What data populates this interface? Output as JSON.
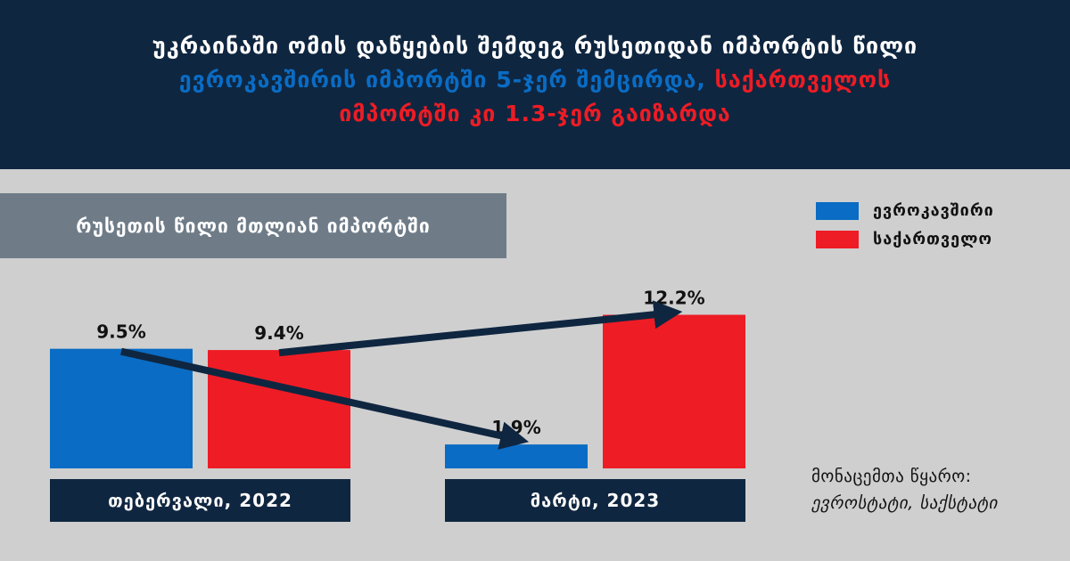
{
  "header": {
    "line1": "უკრაინაში ომის დაწყების შემდეგ რუსეთიდან იმპორტის წილი",
    "line2_blue": "ევროკავშირის იმპორტში 5-ჯერ შემცირდა,",
    "line2_red": "საქართველოს",
    "line3_red": "იმპორტში კი 1.3-ჯერ გაიზარდა"
  },
  "subtitle": "რუსეთის წილი მთლიან იმპორტში",
  "legend": [
    {
      "label": "ევროკავშირი",
      "color": "#0a6cc4"
    },
    {
      "label": "საქართველო",
      "color": "#ee1c25"
    }
  ],
  "chart_data": {
    "type": "bar",
    "categories": [
      "თებერვალი, 2022",
      "მარტი, 2023"
    ],
    "series": [
      {
        "name": "ევროკავშირი",
        "color": "#0a6cc4",
        "values": [
          9.5,
          1.9
        ],
        "labels": [
          "9.5%",
          "1.9%"
        ]
      },
      {
        "name": "საქართველო",
        "color": "#ee1c25",
        "values": [
          9.4,
          12.2
        ],
        "labels": [
          "9.4%",
          "12.2%"
        ]
      }
    ],
    "ylim": [
      0,
      13.5
    ],
    "grid": false,
    "legend_position": "top-right"
  },
  "source": {
    "label": "მონაცემთა წყარო:",
    "value": "ევროსტატი, საქსტატი"
  }
}
